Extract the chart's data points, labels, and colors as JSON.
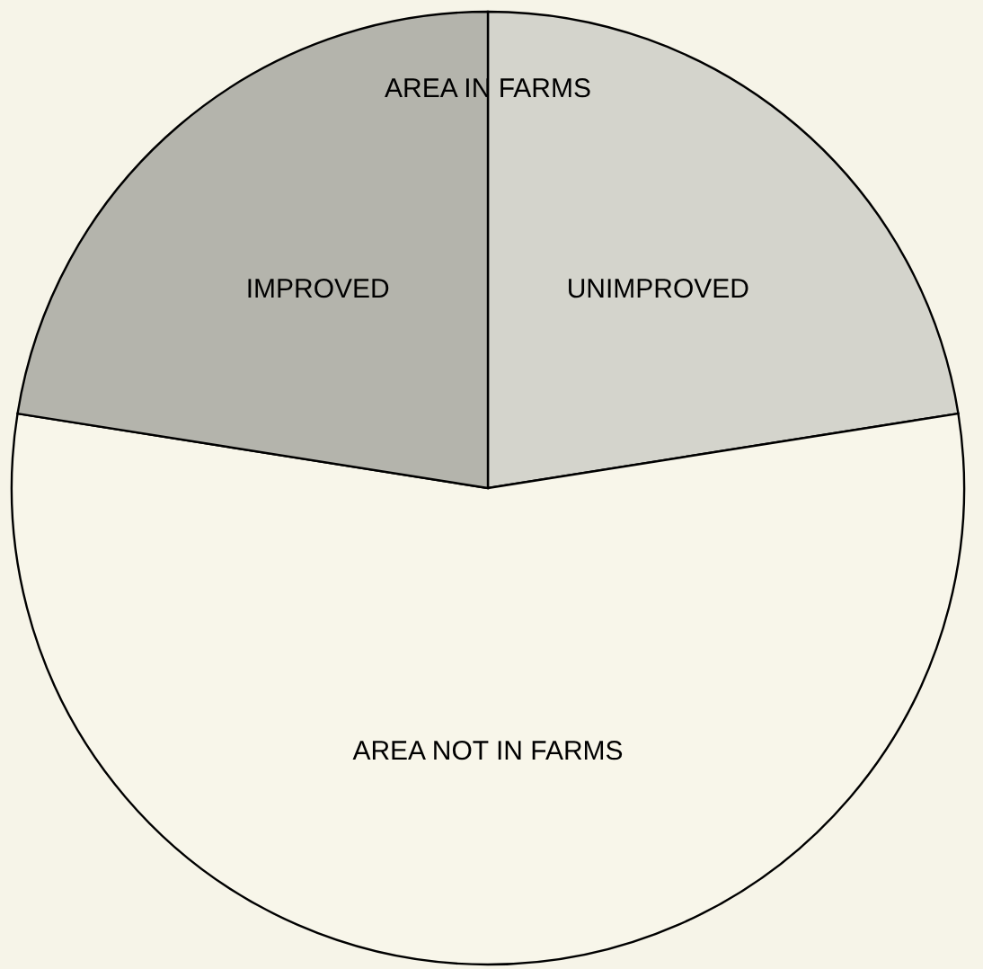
{
  "chart_data": {
    "type": "pie",
    "categories": [
      "UNIMPROVED",
      "AREA NOT IN FARMS",
      "IMPROVED"
    ],
    "values": [
      22.5,
      55,
      22.5
    ],
    "colors": [
      "#d4d4cc",
      "#f8f6ea",
      "#b4b4ac"
    ],
    "annotations": [
      "AREA IN FARMS"
    ]
  }
}
